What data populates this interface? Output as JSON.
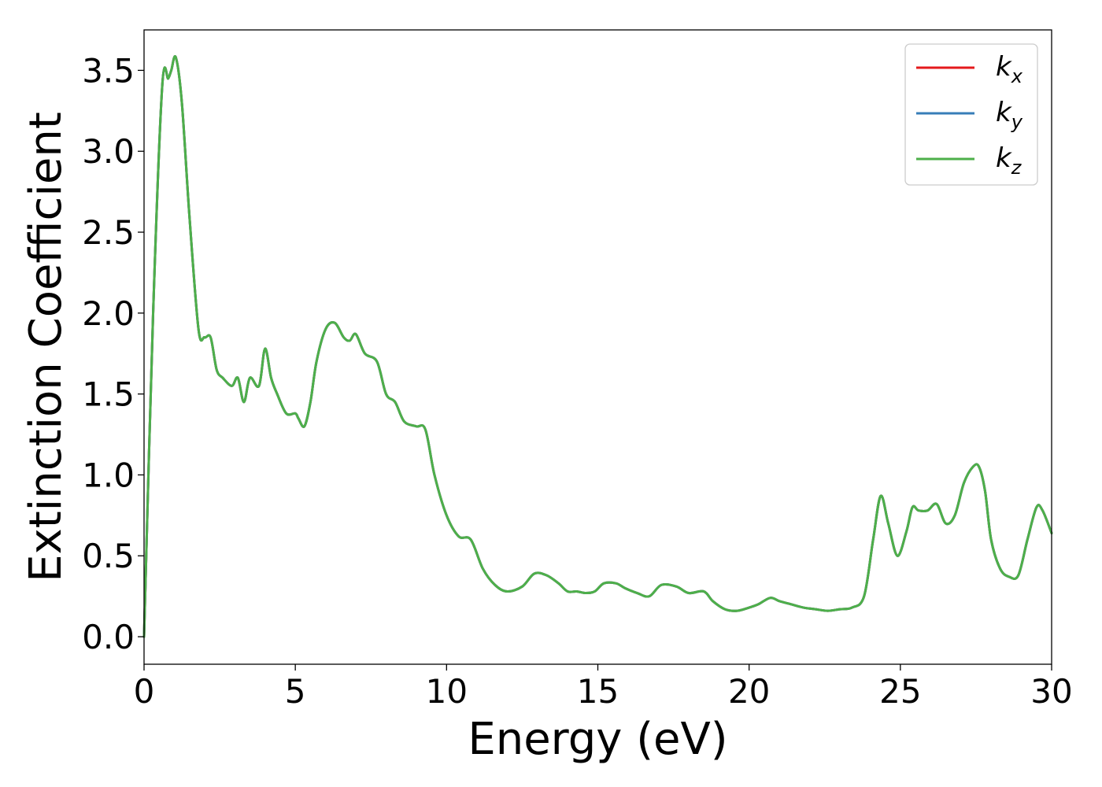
{
  "chart_data": {
    "type": "line",
    "title": "",
    "xlabel": "Energy (eV)",
    "ylabel": "Extinction Coefficient",
    "xlim": [
      0,
      30
    ],
    "ylim": [
      -0.17,
      3.75
    ],
    "xticks": [
      0,
      5,
      10,
      15,
      20,
      25,
      30
    ],
    "xtick_labels": [
      "0",
      "5",
      "10",
      "15",
      "20",
      "25",
      "30"
    ],
    "yticks": [
      0.0,
      0.5,
      1.0,
      1.5,
      2.0,
      2.5,
      3.0,
      3.5
    ],
    "ytick_labels": [
      "0.0",
      "0.5",
      "1.0",
      "1.5",
      "2.0",
      "2.5",
      "3.0",
      "3.5"
    ],
    "grid": false,
    "legend_position": "top-right",
    "series": [
      {
        "name": "k_x",
        "label_base": "k",
        "label_sub": "x",
        "color": "#e41a1c",
        "x": [
          0,
          0.3,
          0.6,
          0.8,
          0.9,
          1.05,
          1.25,
          1.5,
          1.8,
          2.0,
          2.2,
          2.4,
          2.6,
          2.9,
          3.1,
          3.3,
          3.5,
          3.8,
          4.0,
          4.2,
          4.4,
          4.7,
          5.0,
          5.1,
          5.3,
          5.5,
          5.7,
          6.0,
          6.3,
          6.6,
          6.8,
          7.0,
          7.3,
          7.7,
          8.0,
          8.3,
          8.6,
          9.0,
          9.3,
          9.6,
          10.0,
          10.4,
          10.8,
          11.2,
          11.6,
          12.0,
          12.5,
          12.9,
          13.3,
          13.7,
          14.0,
          14.3,
          14.6,
          14.9,
          15.2,
          15.6,
          15.9,
          16.3,
          16.7,
          17.1,
          17.6,
          18.0,
          18.5,
          18.8,
          19.2,
          19.6,
          20.0,
          20.3,
          20.7,
          21.0,
          21.4,
          21.8,
          22.2,
          22.6,
          23.0,
          23.4,
          23.8,
          24.1,
          24.35,
          24.6,
          24.9,
          25.2,
          25.4,
          25.6,
          25.9,
          26.2,
          26.5,
          26.8,
          27.1,
          27.4,
          27.6,
          27.8,
          28.0,
          28.3,
          28.6,
          28.9,
          29.2,
          29.5,
          29.7,
          30.0
        ],
        "y": [
          0.0,
          2.0,
          3.4,
          3.45,
          3.5,
          3.58,
          3.3,
          2.6,
          1.9,
          1.85,
          1.85,
          1.65,
          1.6,
          1.55,
          1.6,
          1.45,
          1.6,
          1.55,
          1.78,
          1.6,
          1.5,
          1.38,
          1.38,
          1.35,
          1.3,
          1.45,
          1.7,
          1.9,
          1.94,
          1.85,
          1.83,
          1.87,
          1.75,
          1.7,
          1.5,
          1.45,
          1.33,
          1.3,
          1.28,
          1.0,
          0.75,
          0.62,
          0.6,
          0.42,
          0.32,
          0.28,
          0.31,
          0.39,
          0.38,
          0.33,
          0.28,
          0.28,
          0.27,
          0.28,
          0.33,
          0.33,
          0.3,
          0.27,
          0.25,
          0.32,
          0.31,
          0.27,
          0.28,
          0.22,
          0.17,
          0.16,
          0.18,
          0.2,
          0.24,
          0.22,
          0.2,
          0.18,
          0.17,
          0.16,
          0.17,
          0.18,
          0.25,
          0.6,
          0.87,
          0.7,
          0.5,
          0.65,
          0.8,
          0.78,
          0.78,
          0.82,
          0.7,
          0.75,
          0.95,
          1.05,
          1.05,
          0.9,
          0.6,
          0.42,
          0.37,
          0.38,
          0.6,
          0.8,
          0.78,
          0.64
        ]
      },
      {
        "name": "k_y",
        "label_base": "k",
        "label_sub": "y",
        "color": "#377eb8",
        "x": [
          0,
          0.3,
          0.6,
          0.8,
          0.9,
          1.05,
          1.25,
          1.5,
          1.8,
          2.0,
          2.2,
          2.4,
          2.6,
          2.9,
          3.1,
          3.3,
          3.5,
          3.8,
          4.0,
          4.2,
          4.4,
          4.7,
          5.0,
          5.1,
          5.3,
          5.5,
          5.7,
          6.0,
          6.3,
          6.6,
          6.8,
          7.0,
          7.3,
          7.7,
          8.0,
          8.3,
          8.6,
          9.0,
          9.3,
          9.6,
          10.0,
          10.4,
          10.8,
          11.2,
          11.6,
          12.0,
          12.5,
          12.9,
          13.3,
          13.7,
          14.0,
          14.3,
          14.6,
          14.9,
          15.2,
          15.6,
          15.9,
          16.3,
          16.7,
          17.1,
          17.6,
          18.0,
          18.5,
          18.8,
          19.2,
          19.6,
          20.0,
          20.3,
          20.7,
          21.0,
          21.4,
          21.8,
          22.2,
          22.6,
          23.0,
          23.4,
          23.8,
          24.1,
          24.35,
          24.6,
          24.9,
          25.2,
          25.4,
          25.6,
          25.9,
          26.2,
          26.5,
          26.8,
          27.1,
          27.4,
          27.6,
          27.8,
          28.0,
          28.3,
          28.6,
          28.9,
          29.2,
          29.5,
          29.7,
          30.0
        ],
        "y": [
          0.0,
          2.0,
          3.4,
          3.45,
          3.5,
          3.58,
          3.3,
          2.6,
          1.9,
          1.85,
          1.85,
          1.65,
          1.6,
          1.55,
          1.6,
          1.45,
          1.6,
          1.55,
          1.78,
          1.6,
          1.5,
          1.38,
          1.38,
          1.35,
          1.3,
          1.45,
          1.7,
          1.9,
          1.94,
          1.85,
          1.83,
          1.87,
          1.75,
          1.7,
          1.5,
          1.45,
          1.33,
          1.3,
          1.28,
          1.0,
          0.75,
          0.62,
          0.6,
          0.42,
          0.32,
          0.28,
          0.31,
          0.39,
          0.38,
          0.33,
          0.28,
          0.28,
          0.27,
          0.28,
          0.33,
          0.33,
          0.3,
          0.27,
          0.25,
          0.32,
          0.31,
          0.27,
          0.28,
          0.22,
          0.17,
          0.16,
          0.18,
          0.2,
          0.24,
          0.22,
          0.2,
          0.18,
          0.17,
          0.16,
          0.17,
          0.18,
          0.25,
          0.6,
          0.87,
          0.7,
          0.5,
          0.65,
          0.8,
          0.78,
          0.78,
          0.82,
          0.7,
          0.75,
          0.95,
          1.05,
          1.05,
          0.9,
          0.6,
          0.42,
          0.37,
          0.38,
          0.6,
          0.8,
          0.78,
          0.64
        ]
      },
      {
        "name": "k_z",
        "label_base": "k",
        "label_sub": "z",
        "color": "#4daf4a",
        "x": [
          0,
          0.3,
          0.6,
          0.8,
          0.9,
          1.05,
          1.25,
          1.5,
          1.8,
          2.0,
          2.2,
          2.4,
          2.6,
          2.9,
          3.1,
          3.3,
          3.5,
          3.8,
          4.0,
          4.2,
          4.4,
          4.7,
          5.0,
          5.1,
          5.3,
          5.5,
          5.7,
          6.0,
          6.3,
          6.6,
          6.8,
          7.0,
          7.3,
          7.7,
          8.0,
          8.3,
          8.6,
          9.0,
          9.3,
          9.6,
          10.0,
          10.4,
          10.8,
          11.2,
          11.6,
          12.0,
          12.5,
          12.9,
          13.3,
          13.7,
          14.0,
          14.3,
          14.6,
          14.9,
          15.2,
          15.6,
          15.9,
          16.3,
          16.7,
          17.1,
          17.6,
          18.0,
          18.5,
          18.8,
          19.2,
          19.6,
          20.0,
          20.3,
          20.7,
          21.0,
          21.4,
          21.8,
          22.2,
          22.6,
          23.0,
          23.4,
          23.8,
          24.1,
          24.35,
          24.6,
          24.9,
          25.2,
          25.4,
          25.6,
          25.9,
          26.2,
          26.5,
          26.8,
          27.1,
          27.4,
          27.6,
          27.8,
          28.0,
          28.3,
          28.6,
          28.9,
          29.2,
          29.5,
          29.7,
          30.0
        ],
        "y": [
          0.0,
          2.0,
          3.4,
          3.45,
          3.5,
          3.58,
          3.3,
          2.6,
          1.9,
          1.85,
          1.85,
          1.65,
          1.6,
          1.55,
          1.6,
          1.45,
          1.6,
          1.55,
          1.78,
          1.6,
          1.5,
          1.38,
          1.38,
          1.35,
          1.3,
          1.45,
          1.7,
          1.9,
          1.94,
          1.85,
          1.83,
          1.87,
          1.75,
          1.7,
          1.5,
          1.45,
          1.33,
          1.3,
          1.28,
          1.0,
          0.75,
          0.62,
          0.6,
          0.42,
          0.32,
          0.28,
          0.31,
          0.39,
          0.38,
          0.33,
          0.28,
          0.28,
          0.27,
          0.28,
          0.33,
          0.33,
          0.3,
          0.27,
          0.25,
          0.32,
          0.31,
          0.27,
          0.28,
          0.22,
          0.17,
          0.16,
          0.18,
          0.2,
          0.24,
          0.22,
          0.2,
          0.18,
          0.17,
          0.16,
          0.17,
          0.18,
          0.25,
          0.6,
          0.87,
          0.7,
          0.5,
          0.65,
          0.8,
          0.78,
          0.78,
          0.82,
          0.7,
          0.75,
          0.95,
          1.05,
          1.05,
          0.9,
          0.6,
          0.42,
          0.37,
          0.38,
          0.6,
          0.8,
          0.78,
          0.64
        ]
      }
    ]
  }
}
